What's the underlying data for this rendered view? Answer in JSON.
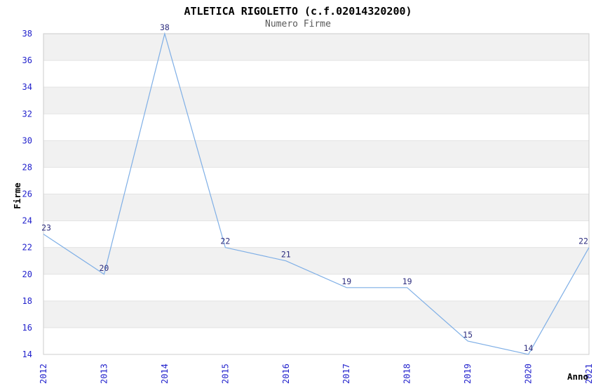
{
  "chart_data": {
    "type": "line",
    "title": "ATLETICA RIGOLETTO (c.f.02014320200)",
    "subtitle": "Numero Firme",
    "xlabel": "Anno",
    "ylabel": "Firme",
    "categories": [
      "2012",
      "2013",
      "2014",
      "2015",
      "2016",
      "2017",
      "2018",
      "2019",
      "2020",
      "2021"
    ],
    "values": [
      23,
      20,
      38,
      22,
      21,
      19,
      19,
      15,
      14,
      22
    ],
    "point_labels": [
      "23",
      "20",
      "38",
      "22",
      "21",
      "19",
      "19",
      "15",
      "14",
      "22"
    ],
    "ylim": [
      14,
      38
    ],
    "yticks": [
      14,
      16,
      18,
      20,
      22,
      24,
      26,
      28,
      30,
      32,
      34,
      36,
      38
    ],
    "grid": "horizontal-bands",
    "legend": "none",
    "colors": {
      "line": "#7fafe6",
      "point_label": "#2e2e7f",
      "tick_label": "#2222cc",
      "band_fill": "#f1f1f1",
      "gridline": "#e3e3e3",
      "plot_border": "#cccccc",
      "title": "#000000",
      "subtitle": "#595959",
      "background": "#ffffff"
    }
  }
}
